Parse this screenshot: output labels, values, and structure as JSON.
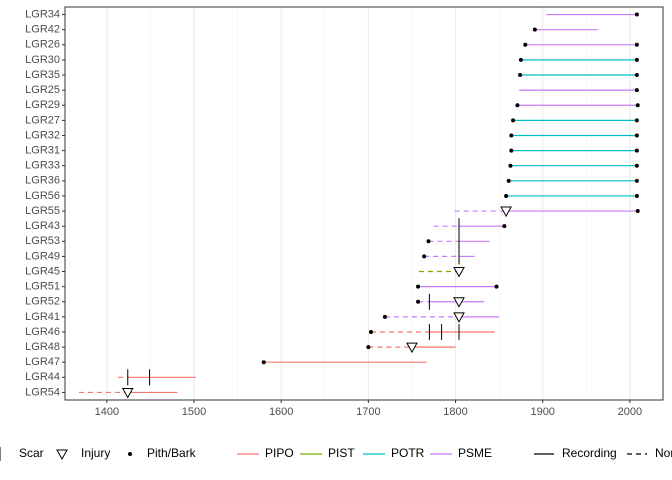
{
  "chart_data": {
    "type": "fire_history",
    "xlim": [
      1352,
      2038
    ],
    "xticks": [
      1400,
      1500,
      1600,
      1700,
      1800,
      1900,
      2000
    ],
    "grid": true,
    "legend": {
      "events": [
        "Scar",
        "Injury",
        "Pith/Bark"
      ],
      "species": [
        {
          "name": "PIPO",
          "color": "#F8766D"
        },
        {
          "name": "PIST",
          "color": "#7CAE00"
        },
        {
          "name": "POTR",
          "color": "#00BFC4"
        },
        {
          "name": "PSME",
          "color": "#C77CFF"
        }
      ],
      "recording": [
        "Recording",
        "Non-recording"
      ]
    },
    "samples": [
      {
        "name": "LGR34",
        "species": "PSME",
        "segments": [
          {
            "start": 1904,
            "end": 2008,
            "recording": true
          }
        ],
        "pith": null,
        "bark": 2008,
        "scars": [],
        "injuries": []
      },
      {
        "name": "LGR42",
        "species": "PSME",
        "segments": [
          {
            "start": 1891,
            "end": 1963,
            "recording": true
          }
        ],
        "pith": 1891,
        "bark": null,
        "scars": [],
        "injuries": []
      },
      {
        "name": "LGR26",
        "species": "PSME",
        "segments": [
          {
            "start": 1880,
            "end": 2008,
            "recording": true
          }
        ],
        "pith": 1880,
        "bark": 2008,
        "scars": [],
        "injuries": []
      },
      {
        "name": "LGR30",
        "species": "POTR",
        "segments": [
          {
            "start": 1875,
            "end": 2008,
            "recording": true
          }
        ],
        "pith": 1875,
        "bark": 2008,
        "scars": [],
        "injuries": []
      },
      {
        "name": "LGR35",
        "species": "POTR",
        "segments": [
          {
            "start": 1874,
            "end": 2008,
            "recording": true
          }
        ],
        "pith": 1874,
        "bark": 2008,
        "scars": [],
        "injuries": []
      },
      {
        "name": "LGR25",
        "species": "PSME",
        "segments": [
          {
            "start": 1873,
            "end": 2008,
            "recording": true
          }
        ],
        "pith": null,
        "bark": 2008,
        "scars": [],
        "injuries": []
      },
      {
        "name": "LGR29",
        "species": "PSME",
        "segments": [
          {
            "start": 1871,
            "end": 2009,
            "recording": true
          }
        ],
        "pith": 1871,
        "bark": 2009,
        "scars": [],
        "injuries": []
      },
      {
        "name": "LGR27",
        "species": "POTR",
        "segments": [
          {
            "start": 1866,
            "end": 2008,
            "recording": true
          }
        ],
        "pith": 1866,
        "bark": 2008,
        "scars": [],
        "injuries": []
      },
      {
        "name": "LGR32",
        "species": "POTR",
        "segments": [
          {
            "start": 1864,
            "end": 2008,
            "recording": true
          }
        ],
        "pith": 1864,
        "bark": 2008,
        "scars": [],
        "injuries": []
      },
      {
        "name": "LGR31",
        "species": "POTR",
        "segments": [
          {
            "start": 1864,
            "end": 2008,
            "recording": true
          }
        ],
        "pith": 1864,
        "bark": 2008,
        "scars": [],
        "injuries": []
      },
      {
        "name": "LGR33",
        "species": "POTR",
        "segments": [
          {
            "start": 1863,
            "end": 2008,
            "recording": true
          }
        ],
        "pith": 1863,
        "bark": 2008,
        "scars": [],
        "injuries": []
      },
      {
        "name": "LGR36",
        "species": "POTR",
        "segments": [
          {
            "start": 1861,
            "end": 2008,
            "recording": true
          }
        ],
        "pith": 1861,
        "bark": 2008,
        "scars": [],
        "injuries": []
      },
      {
        "name": "LGR56",
        "species": "POTR",
        "segments": [
          {
            "start": 1858,
            "end": 2008,
            "recording": true
          }
        ],
        "pith": 1858,
        "bark": 2008,
        "scars": [],
        "injuries": []
      },
      {
        "name": "LGR55",
        "species": "PSME",
        "segments": [
          {
            "start": 1799,
            "end": 1858,
            "recording": false
          },
          {
            "start": 1858,
            "end": 2009,
            "recording": true
          }
        ],
        "pith": null,
        "bark": 2009,
        "scars": [],
        "injuries": [
          1858
        ]
      },
      {
        "name": "LGR43",
        "species": "PSME",
        "segments": [
          {
            "start": 1775,
            "end": 1804,
            "recording": false
          },
          {
            "start": 1804,
            "end": 1856,
            "recording": true
          }
        ],
        "pith": null,
        "bark": 1856,
        "scars": [
          1804
        ],
        "injuries": []
      },
      {
        "name": "LGR53",
        "species": "PSME",
        "segments": [
          {
            "start": 1769,
            "end": 1804,
            "recording": false
          },
          {
            "start": 1804,
            "end": 1839,
            "recording": true
          }
        ],
        "pith": 1769,
        "bark": null,
        "scars": [
          1804
        ],
        "injuries": []
      },
      {
        "name": "LGR49",
        "species": "PSME",
        "segments": [
          {
            "start": 1764,
            "end": 1804,
            "recording": false
          },
          {
            "start": 1804,
            "end": 1822,
            "recording": true
          }
        ],
        "pith": 1764,
        "bark": null,
        "scars": [
          1804
        ],
        "injuries": []
      },
      {
        "name": "LGR45",
        "species": "PIST",
        "segments": [
          {
            "start": 1758,
            "end": 1804,
            "recording": false
          }
        ],
        "pith": null,
        "bark": null,
        "scars": [],
        "injuries": [
          1804
        ]
      },
      {
        "name": "LGR51",
        "species": "PSME",
        "segments": [
          {
            "start": 1757,
            "end": 1847,
            "recording": true
          }
        ],
        "pith": 1757,
        "bark": 1847,
        "scars": [],
        "injuries": []
      },
      {
        "name": "LGR52",
        "species": "PSME",
        "segments": [
          {
            "start": 1757,
            "end": 1770,
            "recording": false
          },
          {
            "start": 1770,
            "end": 1833,
            "recording": true
          }
        ],
        "pith": 1757,
        "bark": null,
        "scars": [
          1770
        ],
        "injuries": [
          1804
        ]
      },
      {
        "name": "LGR41",
        "species": "PSME",
        "segments": [
          {
            "start": 1719,
            "end": 1804,
            "recording": false
          },
          {
            "start": 1804,
            "end": 1850,
            "recording": true
          }
        ],
        "pith": 1719,
        "bark": null,
        "scars": [],
        "injuries": [
          1804
        ]
      },
      {
        "name": "LGR46",
        "species": "PIPO",
        "segments": [
          {
            "start": 1703,
            "end": 1770,
            "recording": false
          },
          {
            "start": 1770,
            "end": 1845,
            "recording": true
          }
        ],
        "pith": 1703,
        "bark": null,
        "scars": [
          1770,
          1784,
          1804
        ],
        "injuries": []
      },
      {
        "name": "LGR48",
        "species": "PIPO",
        "segments": [
          {
            "start": 1700,
            "end": 1750,
            "recording": false
          },
          {
            "start": 1750,
            "end": 1800,
            "recording": true
          }
        ],
        "pith": 1700,
        "bark": null,
        "scars": [],
        "injuries": [
          1750
        ]
      },
      {
        "name": "LGR47",
        "species": "PIPO",
        "segments": [
          {
            "start": 1580,
            "end": 1767,
            "recording": true
          }
        ],
        "pith": 1580,
        "bark": null,
        "scars": [],
        "injuries": []
      },
      {
        "name": "LGR44",
        "species": "PIPO",
        "segments": [
          {
            "start": 1413,
            "end": 1424,
            "recording": false
          },
          {
            "start": 1424,
            "end": 1502,
            "recording": true
          }
        ],
        "pith": null,
        "bark": null,
        "scars": [
          1424,
          1449
        ],
        "injuries": []
      },
      {
        "name": "LGR54",
        "species": "PIPO",
        "segments": [
          {
            "start": 1368,
            "end": 1424,
            "recording": false
          },
          {
            "start": 1424,
            "end": 1481,
            "recording": true
          }
        ],
        "pith": null,
        "bark": null,
        "scars": [],
        "injuries": [
          1424
        ]
      }
    ]
  }
}
